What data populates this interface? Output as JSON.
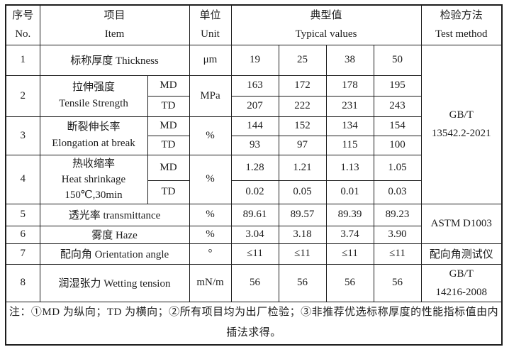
{
  "header": {
    "no": {
      "zh": "序号",
      "en": "No."
    },
    "item": {
      "zh": "项目",
      "en": "Item"
    },
    "unit": {
      "zh": "单位",
      "en": "Unit"
    },
    "typical": {
      "zh": "典型值",
      "en": "Typical values"
    },
    "method": {
      "zh": "检验方法",
      "en": "Test method"
    }
  },
  "labels": {
    "md": "MD",
    "td": "TD"
  },
  "rows": {
    "thickness": {
      "no": "1",
      "item": "标称厚度 Thickness",
      "unit": "μm",
      "values": [
        "19",
        "25",
        "38",
        "50"
      ]
    },
    "tensile": {
      "no": "2",
      "item_zh": "拉伸强度",
      "item_en": "Tensile Strength",
      "unit": "MPa",
      "md": [
        "163",
        "172",
        "178",
        "195"
      ],
      "td": [
        "207",
        "222",
        "231",
        "243"
      ]
    },
    "elongation": {
      "no": "3",
      "item_zh": "断裂伸长率",
      "item_en": "Elongation at break",
      "unit": "%",
      "md": [
        "144",
        "152",
        "134",
        "154"
      ],
      "td": [
        "93",
        "97",
        "115",
        "100"
      ]
    },
    "shrinkage": {
      "no": "4",
      "item_zh": "热收缩率",
      "item_en": "Heat shrinkage",
      "item_cond": "150℃,30min",
      "unit": "%",
      "md": [
        "1.28",
        "1.21",
        "1.13",
        "1.05"
      ],
      "td": [
        "0.02",
        "0.05",
        "0.01",
        "0.03"
      ]
    },
    "transmittance": {
      "no": "5",
      "item": "透光率 transmittance",
      "unit": "%",
      "values": [
        "89.61",
        "89.57",
        "89.39",
        "89.23"
      ]
    },
    "haze": {
      "no": "6",
      "item": "雾度 Haze",
      "unit": "%",
      "values": [
        "3.04",
        "3.18",
        "3.74",
        "3.90"
      ]
    },
    "orientation": {
      "no": "7",
      "item": "配向角 Orientation angle",
      "unit": "°",
      "values": [
        "≤11",
        "≤11",
        "≤11",
        "≤11"
      ]
    },
    "wetting": {
      "no": "8",
      "item": "润湿张力 Wetting tension",
      "unit": "mN/m",
      "values": [
        "56",
        "56",
        "56",
        "56"
      ]
    }
  },
  "methods": {
    "gbt13542": {
      "line1": "GB/T",
      "line2": "13542.2-2021"
    },
    "astm": "ASTM D1003",
    "orientation_tester": "配向角测试仪",
    "gbt14216": {
      "line1": "GB/T",
      "line2": "14216-2008"
    }
  },
  "note": "注：①MD 为纵向；TD 为横向；②所有项目均为出厂检验；③非推荐优选标称厚度的性能指标值由内插法求得。"
}
